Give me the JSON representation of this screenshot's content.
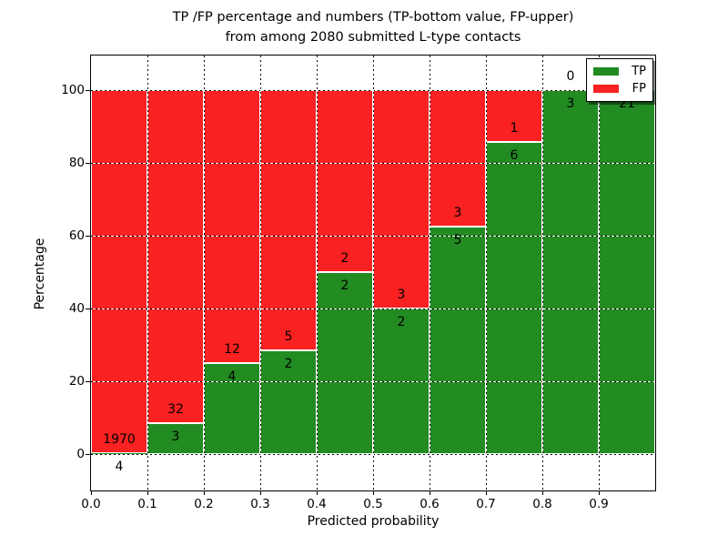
{
  "title": {
    "line1": "TP /FP percentage and numbers (TP-bottom value, FP-upper)",
    "line2": "from among 2080 submitted L-type contacts"
  },
  "axes": {
    "xlabel": "Predicted probability",
    "ylabel": "Percentage",
    "xticks": [
      "0.0",
      "0.1",
      "0.2",
      "0.3",
      "0.4",
      "0.5",
      "0.6",
      "0.7",
      "0.8",
      "0.9"
    ],
    "yticks": [
      "0",
      "20",
      "40",
      "60",
      "80",
      "100"
    ]
  },
  "legend": {
    "items": [
      {
        "label": "TP",
        "color": "#228b22"
      },
      {
        "label": "FP",
        "color": "#f92121"
      }
    ],
    "position": "upper right"
  },
  "colors": {
    "tp": "#228b22",
    "fp": "#f92121",
    "background": "#ffffff",
    "text": "#000000",
    "bar_edge": "#ffffff"
  },
  "chart_data": {
    "type": "bar",
    "stacked": true,
    "title": "TP /FP percentage and numbers (TP-bottom value, FP-upper) from among 2080 submitted L-type contacts",
    "xlabel": "Predicted probability",
    "ylabel": "Percentage",
    "categories": [
      "0.0",
      "0.1",
      "0.2",
      "0.3",
      "0.4",
      "0.5",
      "0.6",
      "0.7",
      "0.8",
      "0.9"
    ],
    "bin_width": 0.1,
    "xlim": [
      0.0,
      1.0
    ],
    "ylim": [
      -10,
      110
    ],
    "grid": true,
    "legend_position": "upper right",
    "series": [
      {
        "name": "TP",
        "color": "#228b22",
        "values": [
          4,
          3,
          4,
          2,
          2,
          2,
          5,
          6,
          3,
          21
        ]
      },
      {
        "name": "FP",
        "color": "#f92121",
        "values": [
          1970,
          32,
          12,
          5,
          2,
          3,
          3,
          1,
          0,
          0
        ]
      }
    ],
    "tp_percent": [
      0.2,
      8.6,
      25.0,
      28.6,
      50.0,
      40.0,
      62.5,
      85.7,
      100.0,
      100.0
    ],
    "fp_percent": [
      99.8,
      91.4,
      75.0,
      71.4,
      50.0,
      60.0,
      37.5,
      14.3,
      0.0,
      0.0
    ],
    "fp_label_visible": [
      true,
      true,
      true,
      true,
      true,
      true,
      true,
      true,
      true,
      false
    ],
    "total_contacts": 2080
  }
}
